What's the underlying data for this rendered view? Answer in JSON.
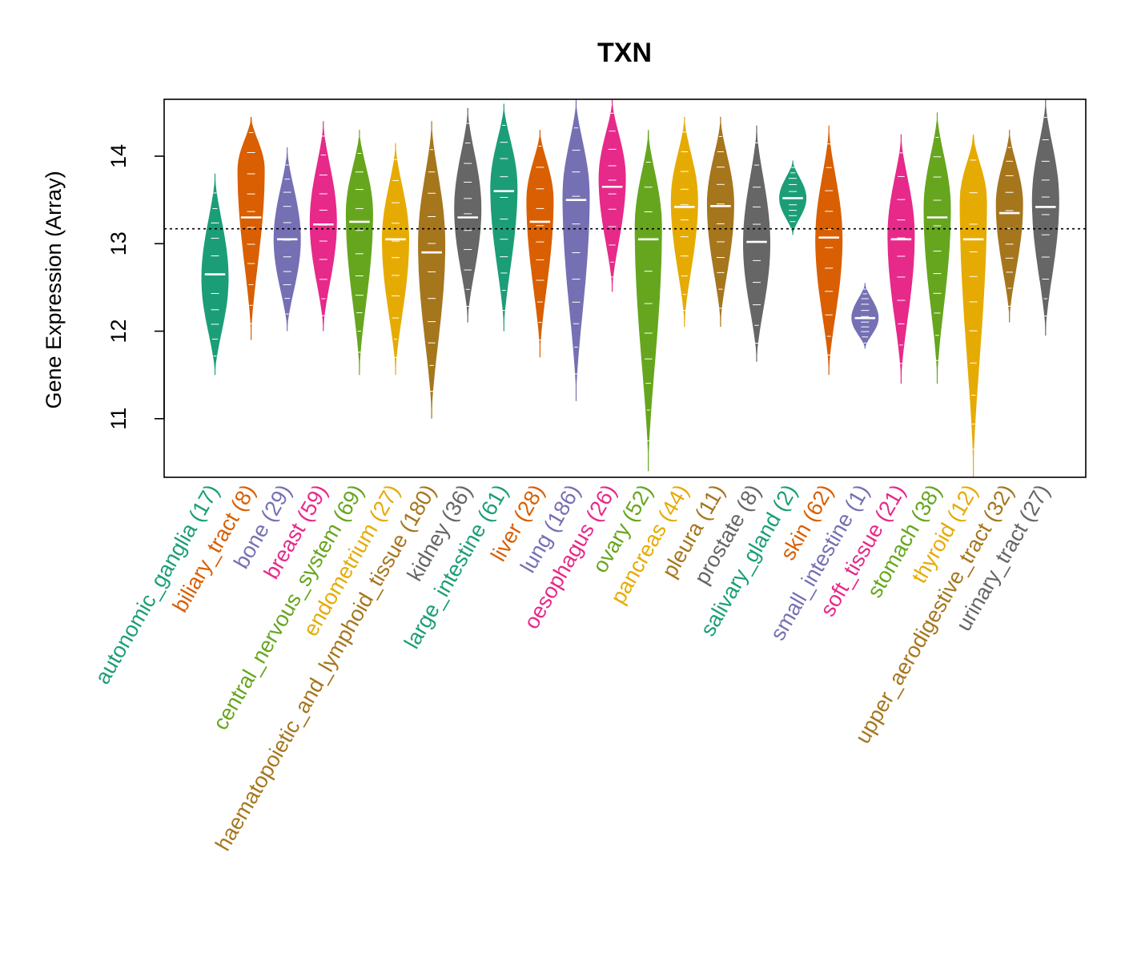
{
  "chart_data": {
    "type": "violin",
    "title": "TXN",
    "ylabel": "Gene Expression (Array)",
    "xlabel": "",
    "ylim": [
      10.33,
      14.65
    ],
    "yticks": [
      11,
      12,
      13,
      14
    ],
    "reference_line": 13.17,
    "categories": [
      {
        "label": "autonomic_ganglia (17)",
        "color": "#1B9E77",
        "min": 11.5,
        "max": 13.8,
        "median": 12.65,
        "peak": 12.6
      },
      {
        "label": "biliary_tract (8)",
        "color": "#D95F02",
        "min": 11.9,
        "max": 14.45,
        "median": 13.3,
        "peak": 13.85
      },
      {
        "label": "bone (29)",
        "color": "#7570B3",
        "min": 12.0,
        "max": 14.1,
        "median": 13.05,
        "peak": 13.05
      },
      {
        "label": "breast (59)",
        "color": "#E7298A",
        "min": 12.0,
        "max": 14.4,
        "median": 13.22,
        "peak": 13.25
      },
      {
        "label": "central_nervous_system (69)",
        "color": "#66A61E",
        "min": 11.5,
        "max": 14.3,
        "median": 13.25,
        "peak": 13.35
      },
      {
        "label": "endometrium (27)",
        "color": "#E6AB02",
        "min": 11.5,
        "max": 14.15,
        "median": 13.05,
        "peak": 13.05
      },
      {
        "label": "haematopoietic_and_lymphoid_tissue (180)",
        "color": "#A6761D",
        "min": 11.0,
        "max": 14.4,
        "median": 12.9,
        "peak": 13.0
      },
      {
        "label": "kidney (36)",
        "color": "#666666",
        "min": 12.1,
        "max": 14.55,
        "median": 13.3,
        "peak": 13.4
      },
      {
        "label": "large_intestine (61)",
        "color": "#1B9E77",
        "min": 12.0,
        "max": 14.6,
        "median": 13.6,
        "peak": 13.65
      },
      {
        "label": "liver (28)",
        "color": "#D95F02",
        "min": 11.7,
        "max": 14.3,
        "median": 13.25,
        "peak": 13.5
      },
      {
        "label": "lung (186)",
        "color": "#7570B3",
        "min": 11.2,
        "max": 14.65,
        "median": 13.5,
        "peak": 13.55
      },
      {
        "label": "oesophagus (26)",
        "color": "#E7298A",
        "min": 12.45,
        "max": 14.65,
        "median": 13.65,
        "peak": 13.75
      },
      {
        "label": "ovary (52)",
        "color": "#66A61E",
        "min": 10.4,
        "max": 14.3,
        "median": 13.05,
        "peak": 13.2
      },
      {
        "label": "pancreas (44)",
        "color": "#E6AB02",
        "min": 12.05,
        "max": 14.45,
        "median": 13.42,
        "peak": 13.5
      },
      {
        "label": "pleura (11)",
        "color": "#A6761D",
        "min": 12.05,
        "max": 14.45,
        "median": 13.43,
        "peak": 13.45
      },
      {
        "label": "prostate (8)",
        "color": "#666666",
        "min": 11.65,
        "max": 14.35,
        "median": 13.02,
        "peak": 13.0
      },
      {
        "label": "salivary_gland (2)",
        "color": "#1B9E77",
        "min": 13.1,
        "max": 13.95,
        "median": 13.52,
        "peak": 13.52
      },
      {
        "label": "skin (62)",
        "color": "#D95F02",
        "min": 11.5,
        "max": 14.35,
        "median": 13.07,
        "peak": 13.05
      },
      {
        "label": "small_intestine (1)",
        "color": "#7570B3",
        "min": 11.8,
        "max": 12.55,
        "median": 12.15,
        "peak": 12.15
      },
      {
        "label": "soft_tissue (21)",
        "color": "#E7298A",
        "min": 11.4,
        "max": 14.25,
        "median": 13.05,
        "peak": 13.1
      },
      {
        "label": "stomach (38)",
        "color": "#66A61E",
        "min": 11.4,
        "max": 14.5,
        "median": 13.3,
        "peak": 13.4
      },
      {
        "label": "thyroid (12)",
        "color": "#E6AB02",
        "min": 10.33,
        "max": 14.25,
        "median": 13.05,
        "peak": 13.5
      },
      {
        "label": "upper_aerodigestive_tract (32)",
        "color": "#A6761D",
        "min": 12.1,
        "max": 14.3,
        "median": 13.35,
        "peak": 13.45
      },
      {
        "label": "urinary_tract (27)",
        "color": "#666666",
        "min": 11.95,
        "max": 14.65,
        "median": 13.42,
        "peak": 13.5
      }
    ]
  }
}
